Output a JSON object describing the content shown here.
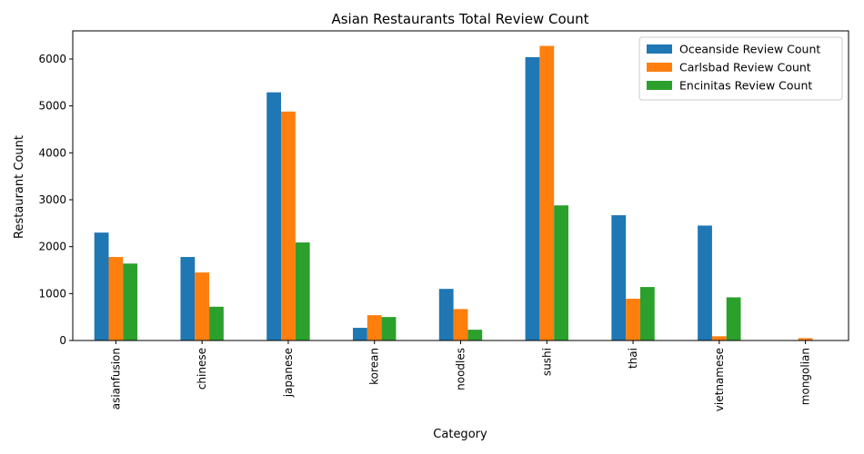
{
  "chart_data": {
    "type": "bar",
    "title": "Asian Restaurants Total Review Count",
    "xlabel": "Category",
    "ylabel": "Restaurant Count",
    "categories": [
      "asianfusion",
      "chinese",
      "japanese",
      "korean",
      "noodles",
      "sushi",
      "thai",
      "vietnamese",
      "mongolian"
    ],
    "series": [
      {
        "name": "Oceanside Review Count",
        "color": "#1f77b4",
        "values": [
          2300,
          1780,
          5290,
          270,
          1100,
          6040,
          2670,
          2450,
          0
        ]
      },
      {
        "name": "Carlsbad Review Count",
        "color": "#ff7f0e",
        "values": [
          1780,
          1450,
          4880,
          540,
          670,
          6280,
          890,
          90,
          50
        ]
      },
      {
        "name": "Encinitas Review Count",
        "color": "#2ca02c",
        "values": [
          1640,
          720,
          2090,
          500,
          230,
          2880,
          1140,
          920,
          0
        ]
      }
    ],
    "ylim": [
      0,
      6600
    ],
    "yticks": [
      0,
      1000,
      2000,
      3000,
      4000,
      5000,
      6000
    ],
    "grid": false,
    "legend_position": "top-right"
  }
}
